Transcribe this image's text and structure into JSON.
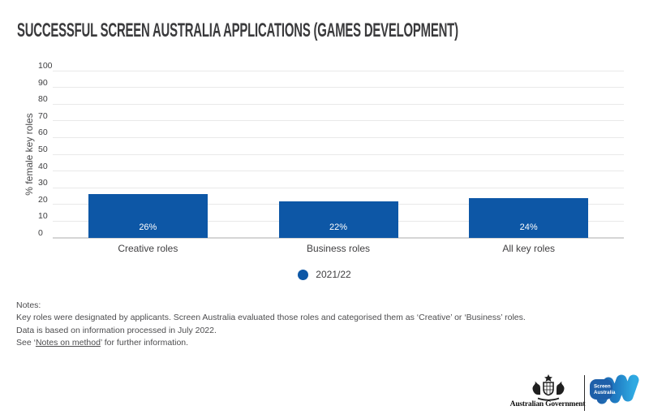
{
  "title": {
    "text": "SUCCESSFUL SCREEN AUSTRALIA APPLICATIONS (GAMES DEVELOPMENT)"
  },
  "chart_data": {
    "type": "bar",
    "title": "SUCCESSFUL SCREEN AUSTRALIA APPLICATIONS (GAMES DEVELOPMENT)",
    "categories": [
      "Creative roles",
      "Business roles",
      "All key roles"
    ],
    "series": [
      {
        "name": "2021/22",
        "values": [
          26,
          22,
          24
        ],
        "color": "#0d57a6"
      }
    ],
    "value_labels": [
      "26%",
      "22%",
      "24%"
    ],
    "xlabel": "",
    "ylabel": "% female key roles",
    "ylim": [
      0,
      100
    ],
    "ytick_interval": 10,
    "grid": true,
    "legend_position": "bottom-center"
  },
  "notes": {
    "heading": "Notes:",
    "lines": [
      "Key roles were designated by applicants. Screen Australia evaluated those roles and categorised them as ‘Creative’ or ‘Business’ roles.",
      "Data is based on information processed in July 2022."
    ],
    "see": {
      "prefix": "See ‘",
      "link": "Notes on method",
      "suffix": "’ for further information."
    }
  },
  "footer": {
    "government_label": "Australian Government",
    "screen_logo_line1": "Screen",
    "screen_logo_line2": "Australia"
  },
  "icons": {
    "legend_marker": "filled-circle",
    "coat_of_arms": "australian-coat-of-arms",
    "screen_australia": "screen-australia-wave-logo"
  },
  "colors": {
    "bar": "#0d57a6",
    "title_text": "#3a3a3c",
    "grid_line": "#e9e9e9",
    "axis_line": "#d5d5d5",
    "tick_text": "#404042",
    "note_text": "#4d4d4f",
    "logo_blue_dark": "#1e5fa9",
    "logo_blue_light": "#2fa9e2"
  }
}
